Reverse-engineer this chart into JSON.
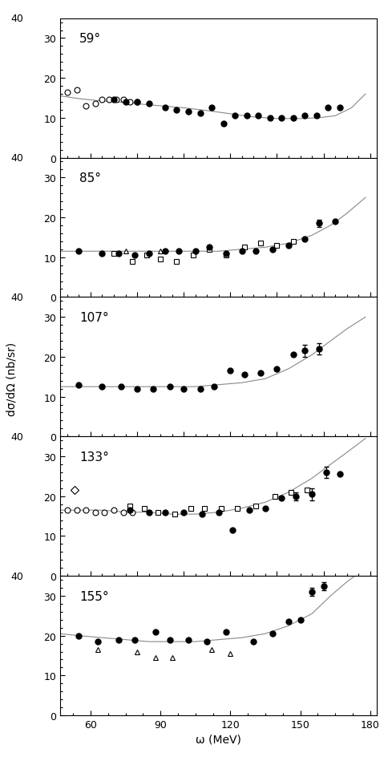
{
  "panels": [
    {
      "angle": "59°",
      "ylim": [
        0,
        35
      ],
      "yticks": [
        0,
        10,
        20,
        30
      ],
      "ytop_label": 40,
      "filled_circles": {
        "x": [
          70,
          75,
          80,
          85,
          92,
          97,
          102,
          107,
          112,
          117,
          122,
          127,
          132,
          137,
          142,
          147,
          152,
          157,
          162,
          167
        ],
        "y": [
          14.5,
          14.0,
          14.0,
          13.5,
          12.5,
          12.0,
          11.5,
          11.2,
          12.5,
          8.5,
          10.5,
          10.5,
          10.5,
          10.0,
          10.0,
          10.0,
          10.5,
          10.5,
          12.5,
          12.5
        ],
        "yerr": [
          null,
          null,
          null,
          null,
          null,
          null,
          null,
          null,
          null,
          null,
          null,
          null,
          null,
          null,
          null,
          null,
          null,
          null,
          null,
          null
        ]
      },
      "open_circles": {
        "x": [
          50,
          54,
          58,
          62,
          65,
          68,
          71,
          74,
          77,
          80
        ],
        "y": [
          16.5,
          17.0,
          13.0,
          13.5,
          14.5,
          14.5,
          14.5,
          14.5,
          14.0,
          14.0
        ]
      },
      "curve_x": [
        47,
        55,
        63,
        71,
        80,
        90,
        100,
        110,
        120,
        130,
        140,
        150,
        158,
        165,
        172,
        178
      ],
      "curve_y": [
        15.5,
        14.8,
        14.3,
        14.0,
        13.5,
        13.0,
        12.5,
        11.8,
        11.0,
        10.2,
        9.8,
        9.8,
        10.0,
        10.5,
        12.5,
        16.0
      ]
    },
    {
      "angle": "85°",
      "ylim": [
        0,
        35
      ],
      "yticks": [
        0,
        10,
        20,
        30
      ],
      "ytop_label": 40,
      "filled_circles": {
        "x": [
          55,
          65,
          72,
          79,
          85,
          92,
          98,
          105,
          111,
          118,
          125,
          131,
          138,
          145,
          152,
          158,
          165
        ],
        "y": [
          11.5,
          11.0,
          11.0,
          10.5,
          11.0,
          11.5,
          11.5,
          11.5,
          12.5,
          11.0,
          11.5,
          11.5,
          12.0,
          13.0,
          14.5,
          18.5,
          19.0
        ],
        "yerr": [
          null,
          null,
          null,
          null,
          null,
          null,
          null,
          null,
          null,
          null,
          null,
          null,
          null,
          null,
          null,
          1.0,
          null
        ]
      },
      "open_squares": {
        "x": [
          70,
          78,
          84,
          90,
          97,
          104,
          111,
          118,
          126,
          133,
          140,
          147
        ],
        "y": [
          11.0,
          9.0,
          10.5,
          9.5,
          9.0,
          10.5,
          12.0,
          10.5,
          12.5,
          13.5,
          13.0,
          14.0
        ]
      },
      "open_triangles": {
        "x": [
          75,
          90
        ],
        "y": [
          11.5,
          11.5
        ]
      },
      "curve_x": [
        47,
        55,
        65,
        75,
        85,
        95,
        105,
        115,
        125,
        135,
        145,
        155,
        163,
        170,
        178
      ],
      "curve_y": [
        11.5,
        11.5,
        11.5,
        11.5,
        11.5,
        11.5,
        11.5,
        11.5,
        12.0,
        12.5,
        13.5,
        15.5,
        18.0,
        21.0,
        25.0
      ]
    },
    {
      "angle": "107°",
      "ylim": [
        0,
        35
      ],
      "yticks": [
        0,
        10,
        20,
        30
      ],
      "ytop_label": 40,
      "filled_circles": {
        "x": [
          55,
          65,
          73,
          80,
          87,
          94,
          100,
          107,
          113,
          120,
          126,
          133,
          140,
          147,
          152,
          158
        ],
        "y": [
          13.0,
          12.5,
          12.5,
          12.0,
          12.0,
          12.5,
          12.0,
          12.0,
          12.5,
          16.5,
          15.5,
          16.0,
          17.0,
          20.5,
          21.5,
          22.0
        ],
        "yerr": [
          null,
          null,
          null,
          null,
          null,
          null,
          null,
          null,
          null,
          null,
          null,
          null,
          null,
          null,
          1.5,
          1.5
        ]
      },
      "curve_x": [
        47,
        55,
        65,
        75,
        85,
        95,
        105,
        115,
        125,
        135,
        145,
        155,
        163,
        170,
        178
      ],
      "curve_y": [
        12.5,
        12.5,
        12.5,
        12.5,
        12.5,
        12.5,
        12.5,
        13.0,
        13.5,
        14.5,
        17.0,
        20.5,
        24.0,
        27.0,
        30.0
      ]
    },
    {
      "angle": "133°",
      "ylim": [
        0,
        35
      ],
      "yticks": [
        0,
        10,
        20,
        30
      ],
      "ytop_label": 40,
      "filled_circles": {
        "x": [
          77,
          85,
          92,
          100,
          108,
          115,
          121,
          128,
          135,
          142,
          148,
          155,
          161,
          167
        ],
        "y": [
          16.5,
          16.0,
          16.0,
          16.0,
          15.5,
          16.0,
          11.5,
          16.5,
          17.0,
          19.5,
          20.0,
          20.5,
          26.0,
          25.5
        ],
        "yerr": [
          null,
          null,
          null,
          null,
          null,
          null,
          null,
          null,
          null,
          null,
          1.0,
          1.5,
          1.5,
          null
        ]
      },
      "open_circles": {
        "x": [
          50,
          54,
          58,
          62,
          66,
          70,
          74,
          78
        ],
        "y": [
          16.5,
          16.5,
          16.5,
          16.0,
          16.0,
          16.5,
          16.0,
          16.0
        ]
      },
      "open_diamonds": {
        "x": [
          53
        ],
        "y": [
          21.5
        ]
      },
      "open_squares": {
        "x": [
          77,
          83,
          89,
          96,
          103,
          109,
          116,
          123,
          131,
          139,
          146,
          153
        ],
        "y": [
          17.5,
          17.0,
          16.0,
          15.5,
          17.0,
          17.0,
          17.0,
          17.0,
          17.5,
          20.0,
          21.0,
          21.5
        ]
      },
      "curve_x": [
        47,
        55,
        65,
        75,
        85,
        95,
        105,
        115,
        125,
        135,
        145,
        155,
        163,
        170,
        178
      ],
      "curve_y": [
        16.5,
        16.5,
        16.5,
        16.0,
        16.0,
        15.5,
        15.5,
        16.0,
        17.0,
        18.5,
        21.0,
        24.5,
        28.0,
        31.0,
        34.5
      ]
    },
    {
      "angle": "155°",
      "ylim": [
        0,
        35
      ],
      "yticks": [
        0,
        10,
        20,
        30
      ],
      "ytop_label": 40,
      "filled_circles": {
        "x": [
          55,
          63,
          72,
          79,
          88,
          94,
          102,
          110,
          118,
          130,
          138,
          145,
          150,
          155,
          160
        ],
        "y": [
          20.0,
          18.5,
          19.0,
          19.0,
          21.0,
          19.0,
          19.0,
          18.5,
          21.0,
          18.5,
          20.5,
          23.5,
          24.0,
          31.0,
          32.5
        ],
        "yerr": [
          null,
          null,
          null,
          null,
          null,
          null,
          null,
          null,
          null,
          null,
          null,
          null,
          null,
          1.0,
          1.0
        ]
      },
      "open_triangles": {
        "x": [
          63,
          80,
          88,
          95,
          112,
          120
        ],
        "y": [
          16.5,
          16.0,
          14.5,
          14.5,
          16.5,
          15.5
        ]
      },
      "curve_x": [
        47,
        55,
        65,
        75,
        85,
        95,
        105,
        115,
        125,
        135,
        145,
        155,
        163,
        170,
        178
      ],
      "curve_y": [
        20.5,
        20.0,
        19.5,
        19.0,
        18.5,
        18.5,
        18.5,
        19.0,
        19.5,
        20.5,
        22.5,
        25.5,
        30.0,
        33.5,
        37.0
      ]
    }
  ],
  "xlabel": "ω (MeV)",
  "ylabel": "dσ/dΩ (nb/sr)",
  "xlim": [
    47,
    183
  ],
  "xticks": [
    60,
    90,
    120,
    150,
    180
  ],
  "figure_size": [
    4.85,
    9.45
  ],
  "dpi": 100
}
